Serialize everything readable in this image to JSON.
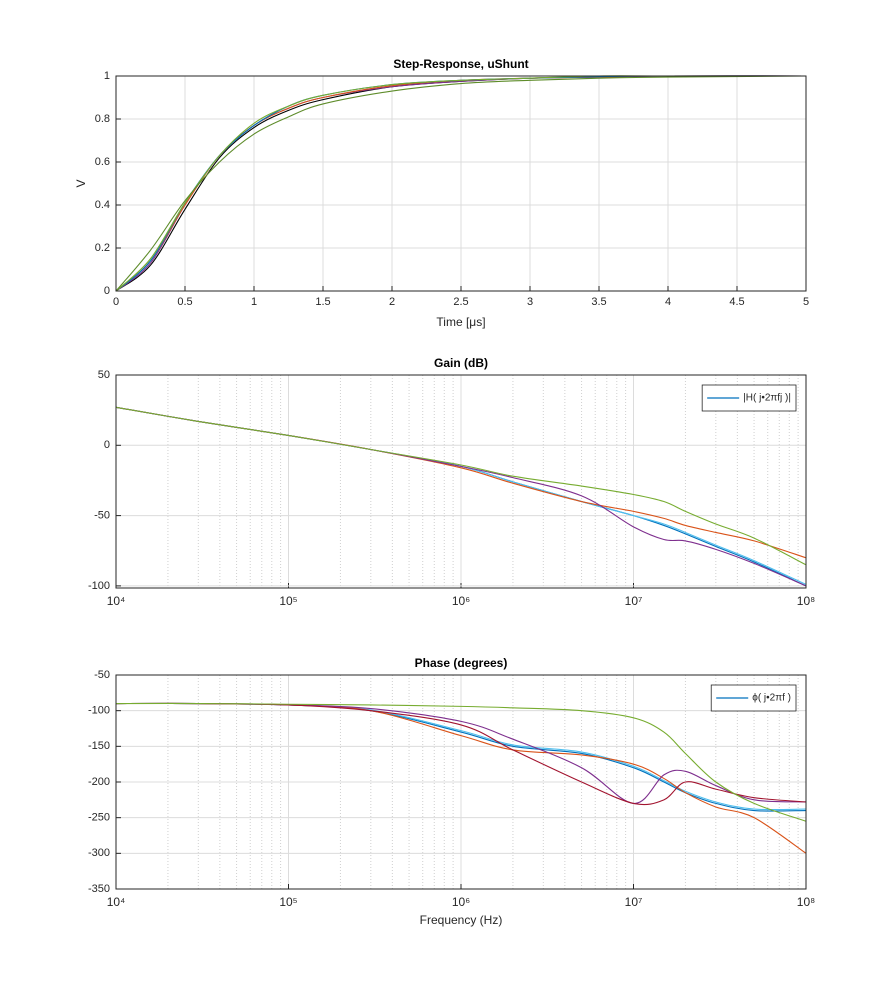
{
  "chart_data": [
    {
      "type": "line",
      "title": "Step-Response, uShunt",
      "xlabel": "Time [μs]",
      "ylabel": "V",
      "x": [
        0,
        0.25,
        0.5,
        0.75,
        1,
        1.25,
        1.5,
        2,
        2.5,
        3,
        3.5,
        4,
        5
      ],
      "xlim": [
        0,
        5
      ],
      "ylim": [
        0,
        1
      ],
      "xticks": [
        0,
        0.5,
        1,
        1.5,
        2,
        2.5,
        3,
        3.5,
        4,
        4.5,
        5
      ],
      "yticks": [
        0,
        0.2,
        0.4,
        0.6,
        0.8,
        1
      ],
      "grid": true,
      "series": [
        {
          "color": "#000000",
          "values": [
            0,
            0.12,
            0.38,
            0.62,
            0.76,
            0.84,
            0.89,
            0.95,
            0.975,
            0.99,
            0.995,
            1,
            1
          ]
        },
        {
          "color": "#7E2F8E",
          "values": [
            0,
            0.13,
            0.4,
            0.63,
            0.77,
            0.85,
            0.9,
            0.95,
            0.975,
            0.99,
            0.995,
            1,
            1
          ]
        },
        {
          "color": "#D95319",
          "values": [
            0,
            0.14,
            0.4,
            0.63,
            0.77,
            0.85,
            0.9,
            0.955,
            0.98,
            0.99,
            0.995,
            1,
            1
          ]
        },
        {
          "color": "#0072BD",
          "values": [
            0,
            0.14,
            0.41,
            0.63,
            0.77,
            0.86,
            0.91,
            0.96,
            0.98,
            0.99,
            0.997,
            1,
            1
          ]
        },
        {
          "color": "#77AC30",
          "values": [
            0,
            0.15,
            0.41,
            0.63,
            0.78,
            0.86,
            0.91,
            0.96,
            0.98,
            0.99,
            1,
            1,
            1
          ]
        },
        {
          "color": "#5E8C2A",
          "values": [
            0,
            0.19,
            0.42,
            0.6,
            0.73,
            0.81,
            0.87,
            0.93,
            0.965,
            0.98,
            0.99,
            0.995,
            1
          ]
        }
      ]
    },
    {
      "type": "line",
      "title": "Gain (dB)",
      "xscale": "log",
      "legend": "northeast",
      "x": [
        10000,
        30000,
        100000,
        300000,
        1000000,
        2000000,
        5000000,
        10000000,
        15000000,
        20000000,
        30000000,
        50000000,
        100000000
      ],
      "xlim": [
        10000,
        100000000
      ],
      "ylim": [
        -101.5,
        50
      ],
      "xticks": [
        {
          "value": 10000,
          "label": "10⁴"
        },
        {
          "value": 100000,
          "label": "10⁵"
        },
        {
          "value": 1000000,
          "label": "10⁶"
        },
        {
          "value": 10000000,
          "label": "10⁷"
        },
        {
          "value": 100000000,
          "label": "10⁸"
        }
      ],
      "yticks": [
        -100,
        -50,
        0,
        50
      ],
      "grid": true,
      "minor_grid": true,
      "series": [
        {
          "name": "|H( j•2πfj )|",
          "color": "#0072BD",
          "values": [
            27,
            17,
            7,
            -3,
            -15,
            -26,
            -40,
            -50,
            -57,
            -63,
            -72,
            -83,
            -100
          ]
        },
        {
          "color": "#4DBEEE",
          "values": [
            27,
            17,
            7,
            -3,
            -15,
            -26,
            -40,
            -50,
            -56,
            -62,
            -71,
            -82,
            -99
          ]
        },
        {
          "color": "#D95319",
          "values": [
            27,
            17,
            7,
            -3,
            -16,
            -27,
            -40,
            -47,
            -52,
            -57,
            -62,
            -68,
            -80
          ]
        },
        {
          "color": "#7E2F8E",
          "values": [
            27,
            17,
            7,
            -3,
            -15,
            -23,
            -36,
            -58,
            -67,
            -68,
            -74,
            -84,
            -100
          ]
        },
        {
          "color": "#77AC30",
          "values": [
            27,
            17,
            7,
            -3,
            -14,
            -22,
            -29,
            -35,
            -40,
            -47,
            -56,
            -66,
            -85
          ]
        }
      ]
    },
    {
      "type": "line",
      "title": "Phase (degrees)",
      "xlabel": "Frequency (Hz)",
      "xscale": "log",
      "legend": "northeast",
      "x": [
        10000,
        30000,
        100000,
        300000,
        1000000,
        2000000,
        5000000,
        10000000,
        15000000,
        20000000,
        30000000,
        50000000,
        100000000
      ],
      "xlim": [
        10000,
        100000000
      ],
      "ylim": [
        -350,
        -50
      ],
      "xticks": [
        {
          "value": 10000,
          "label": "10⁴"
        },
        {
          "value": 100000,
          "label": "10⁵"
        },
        {
          "value": 1000000,
          "label": "10⁶"
        },
        {
          "value": 10000000,
          "label": "10⁷"
        },
        {
          "value": 100000000,
          "label": "10⁸"
        }
      ],
      "yticks": [
        -350,
        -300,
        -250,
        -200,
        -150,
        -100,
        -50
      ],
      "grid": true,
      "minor_grid": true,
      "series": [
        {
          "name": "ϕ( j•2πf )",
          "color": "#0072BD",
          "values": [
            -90,
            -90,
            -92,
            -100,
            -130,
            -150,
            -160,
            -180,
            -200,
            -215,
            -230,
            -240,
            -240
          ]
        },
        {
          "color": "#4DBEEE",
          "values": [
            -90,
            -90,
            -92,
            -99,
            -128,
            -148,
            -158,
            -178,
            -198,
            -213,
            -228,
            -238,
            -238
          ]
        },
        {
          "color": "#D95319",
          "values": [
            -90,
            -90,
            -92,
            -100,
            -135,
            -155,
            -162,
            -175,
            -195,
            -215,
            -235,
            -250,
            -300
          ]
        },
        {
          "color": "#7E2F8E",
          "values": [
            -90,
            -90,
            -92,
            -97,
            -115,
            -140,
            -180,
            -230,
            -190,
            -185,
            -205,
            -225,
            -228
          ]
        },
        {
          "color": "#A2142F",
          "values": [
            -90,
            -90,
            -92,
            -100,
            -120,
            -155,
            -200,
            -230,
            -225,
            -200,
            -210,
            -222,
            -228
          ]
        },
        {
          "color": "#77AC30",
          "values": [
            -90,
            -90,
            -91,
            -92,
            -94,
            -96,
            -100,
            -110,
            -130,
            -160,
            -200,
            -230,
            -255
          ]
        }
      ]
    }
  ]
}
